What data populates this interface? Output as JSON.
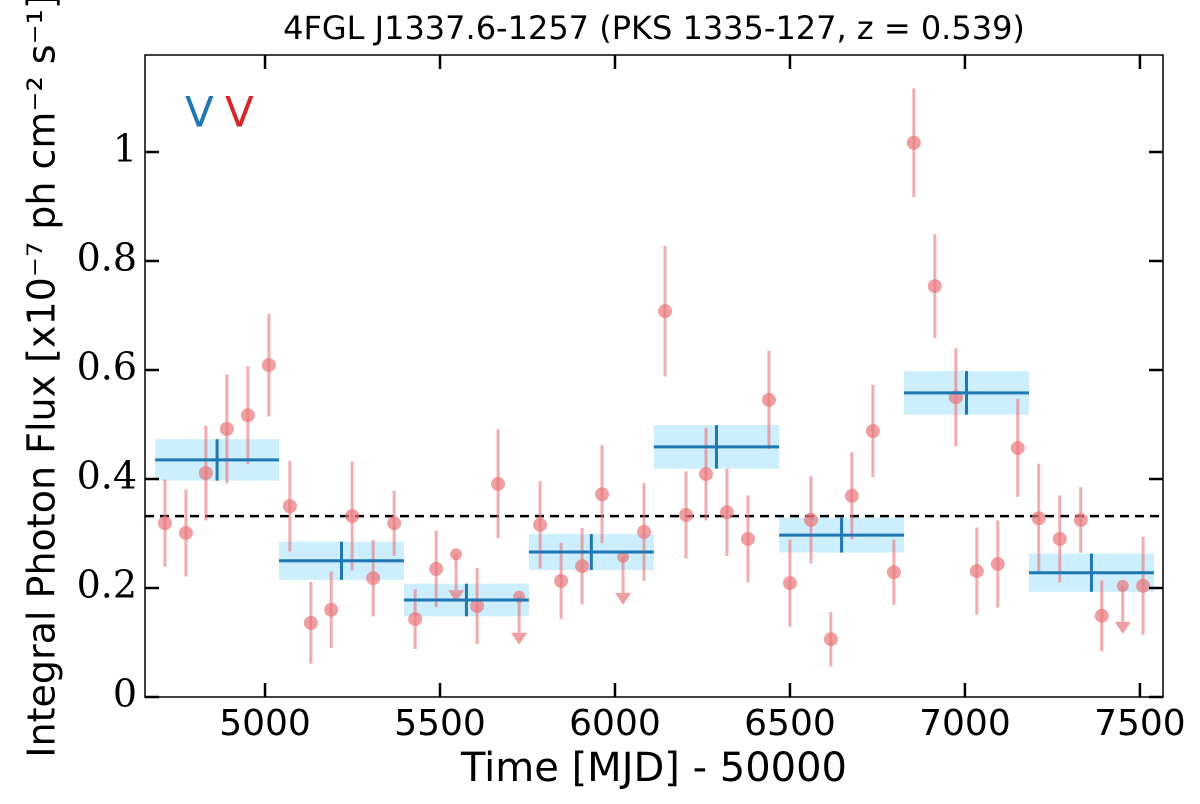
{
  "chart_data": {
    "type": "scatter",
    "title": "4FGL J1337.6-1257 (PKS 1335-127, z = 0.539)",
    "xlabel": "Time [MJD] - 50000",
    "ylabel": "Integral Photon Flux [x10⁻⁷ ph cm⁻² s⁻¹]",
    "xlim": [
      4657,
      7566
    ],
    "ylim": [
      0,
      1.178
    ],
    "xticks": [
      5000,
      5500,
      6000,
      6500,
      7000,
      7500
    ],
    "yticks": [
      0,
      0.2,
      0.4,
      0.6,
      0.8,
      1
    ],
    "annotations": [
      {
        "text": "V",
        "color": "#1f77b4"
      },
      {
        "text": "V",
        "color": "#d62728"
      }
    ],
    "points": {
      "color": "#e8767a",
      "x": [
        4714,
        4774,
        4831,
        4891,
        4951,
        5011,
        5071,
        5131,
        5189,
        5249,
        5309,
        5369,
        5429,
        5489,
        5606,
        5666,
        5786,
        5846,
        5906,
        5963,
        6083,
        6143,
        6203,
        6260,
        6320,
        6380,
        6440,
        6500,
        6560,
        6617,
        6677,
        6737,
        6797,
        6854,
        6914,
        6974,
        7034,
        7094,
        7151,
        7211,
        7271,
        7331,
        7391,
        7509
      ],
      "values": [
        0.319,
        0.301,
        0.411,
        0.492,
        0.517,
        0.609,
        0.35,
        0.136,
        0.16,
        0.332,
        0.218,
        0.319,
        0.143,
        0.235,
        0.167,
        0.391,
        0.316,
        0.213,
        0.24,
        0.372,
        0.303,
        0.708,
        0.334,
        0.409,
        0.339,
        0.29,
        0.545,
        0.209,
        0.325,
        0.106,
        0.369,
        0.488,
        0.229,
        1.017,
        0.754,
        0.55,
        0.231,
        0.244,
        0.457,
        0.328,
        0.29,
        0.325,
        0.149,
        0.204
      ],
      "errors": [
        0.08,
        0.08,
        0.087,
        0.1,
        0.09,
        0.094,
        0.083,
        0.075,
        0.07,
        0.1,
        0.07,
        0.06,
        0.055,
        0.07,
        0.07,
        0.1,
        0.08,
        0.07,
        0.07,
        0.09,
        0.09,
        0.12,
        0.08,
        0.085,
        0.08,
        0.08,
        0.09,
        0.08,
        0.08,
        0.05,
        0.08,
        0.085,
        0.06,
        0.1,
        0.095,
        0.09,
        0.08,
        0.08,
        0.09,
        0.1,
        0.08,
        0.06,
        0.065,
        0.09
      ]
    },
    "upper_limits": {
      "color": "#e8767a",
      "x": [
        5546,
        5726,
        6023,
        7451
      ],
      "values": [
        0.262,
        0.184,
        0.257,
        0.204
      ]
    },
    "bins": {
      "color": "#1f77b4",
      "band_color": "#cdeefc",
      "x_start": [
        4686,
        5040,
        5397,
        5754,
        6111,
        6469,
        6826,
        7183
      ],
      "x_end": [
        5040,
        5397,
        5754,
        6111,
        6469,
        6826,
        7183,
        7540
      ],
      "values": [
        0.435,
        0.25,
        0.178,
        0.266,
        0.459,
        0.297,
        0.558,
        0.228
      ],
      "errors": [
        0.038,
        0.035,
        0.03,
        0.033,
        0.04,
        0.032,
        0.04,
        0.035
      ]
    },
    "mean": {
      "value": 0.332
    }
  }
}
